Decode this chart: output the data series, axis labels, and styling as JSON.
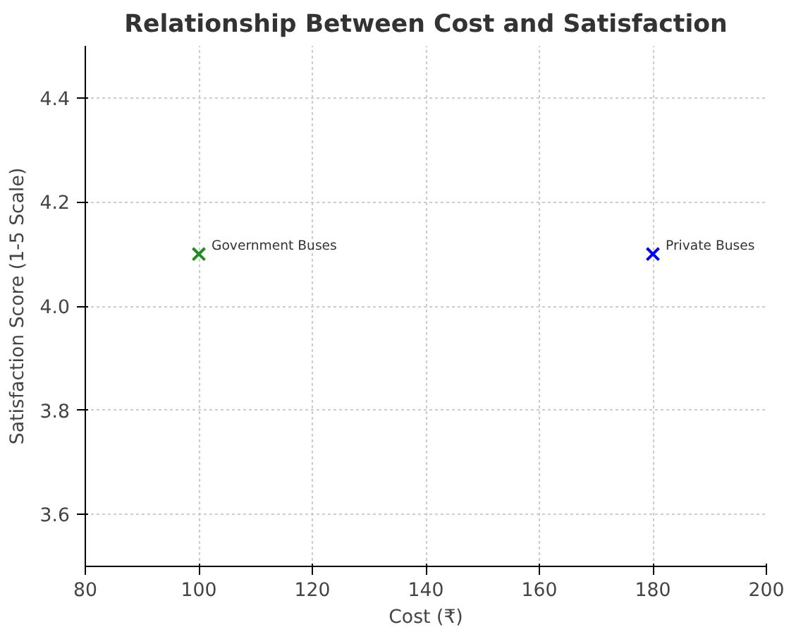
{
  "chart_data": {
    "type": "scatter",
    "title": "Relationship Between Cost and Satisfaction",
    "xlabel": "Cost (₹)",
    "ylabel": "Satisfaction Score (1-5 Scale)",
    "series": [
      {
        "name": "Government Buses",
        "color": "#228b22",
        "x": [
          100
        ],
        "values": [
          4.1
        ]
      },
      {
        "name": "Private Buses",
        "color": "#0000ff",
        "x": [
          180
        ],
        "values": [
          4.1
        ]
      }
    ],
    "xlim": [
      80,
      200
    ],
    "xticks": [
      80,
      100,
      120,
      140,
      160,
      180,
      200
    ],
    "ylim": [
      3.5,
      4.5
    ],
    "yticks": [
      3.6,
      3.8,
      {
        "value": 4.0,
        "label": "4.0"
      },
      4.2,
      4.4
    ],
    "grid": true,
    "marker": "cross"
  }
}
